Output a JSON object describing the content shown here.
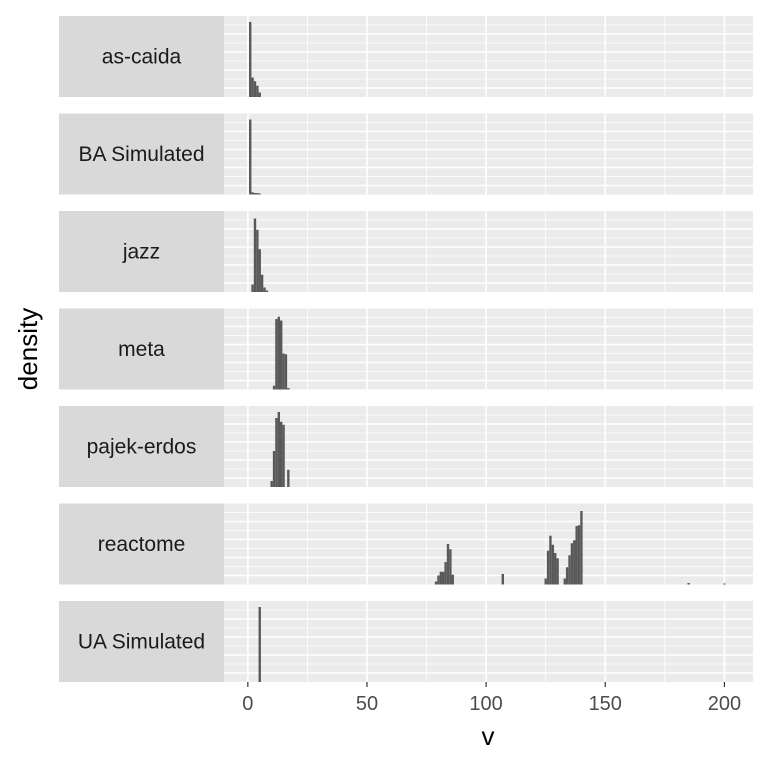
{
  "chart_data": {
    "type": "bar",
    "xlabel": "v",
    "ylabel": "density",
    "xlim": [
      -10,
      212
    ],
    "x_ticks": [
      "0",
      "50",
      "100",
      "150",
      "200"
    ],
    "x_tick_values": [
      0,
      50,
      100,
      150,
      200
    ],
    "grid": true,
    "bar_color": "#595959",
    "panel_bg": "#ebebeb",
    "strip_bg": "#d9d9d9",
    "bin_width": 1,
    "panels": [
      {
        "name": "as-caida",
        "bins": [
          [
            1,
            1.0
          ],
          [
            2,
            0.26
          ],
          [
            3,
            0.21
          ],
          [
            4,
            0.15
          ],
          [
            5,
            0.06
          ]
        ]
      },
      {
        "name": "BA Simulated",
        "bins": [
          [
            1,
            1.0
          ],
          [
            2,
            0.03
          ],
          [
            3,
            0.02
          ],
          [
            4,
            0.02
          ],
          [
            5,
            0.01
          ]
        ]
      },
      {
        "name": "jazz",
        "bins": [
          [
            2,
            0.1
          ],
          [
            3,
            0.98
          ],
          [
            4,
            0.83
          ],
          [
            5,
            0.57
          ],
          [
            6,
            0.23
          ],
          [
            7,
            0.06
          ],
          [
            8,
            0.02
          ]
        ]
      },
      {
        "name": "meta",
        "bins": [
          [
            11,
            0.05
          ],
          [
            12,
            0.94
          ],
          [
            13,
            0.97
          ],
          [
            14,
            0.92
          ],
          [
            15,
            0.48
          ],
          [
            16,
            0.47
          ],
          [
            17,
            0.02
          ]
        ]
      },
      {
        "name": "pajek-erdos",
        "bins": [
          [
            10,
            0.08
          ],
          [
            11,
            0.48
          ],
          [
            12,
            0.92
          ],
          [
            13,
            1.0
          ],
          [
            14,
            0.87
          ],
          [
            15,
            0.83
          ],
          [
            16,
            0.0
          ],
          [
            17,
            0.23
          ]
        ]
      },
      {
        "name": "reactome",
        "bins": [
          [
            79,
            0.04
          ],
          [
            80,
            0.12
          ],
          [
            81,
            0.17
          ],
          [
            82,
            0.17
          ],
          [
            83,
            0.3
          ],
          [
            84,
            0.54
          ],
          [
            85,
            0.47
          ],
          [
            86,
            0.13
          ],
          [
            107,
            0.14
          ],
          [
            125,
            0.08
          ],
          [
            126,
            0.45
          ],
          [
            127,
            0.65
          ],
          [
            128,
            0.53
          ],
          [
            129,
            0.42
          ],
          [
            130,
            0.35
          ],
          [
            133,
            0.08
          ],
          [
            134,
            0.23
          ],
          [
            135,
            0.39
          ],
          [
            136,
            0.55
          ],
          [
            137,
            0.59
          ],
          [
            138,
            0.78
          ],
          [
            139,
            0.79
          ],
          [
            140,
            0.98
          ],
          [
            185,
            0.02
          ],
          [
            200,
            0.01
          ]
        ]
      },
      {
        "name": "UA Simulated",
        "bins": [
          [
            5,
            1.0
          ]
        ]
      }
    ]
  }
}
